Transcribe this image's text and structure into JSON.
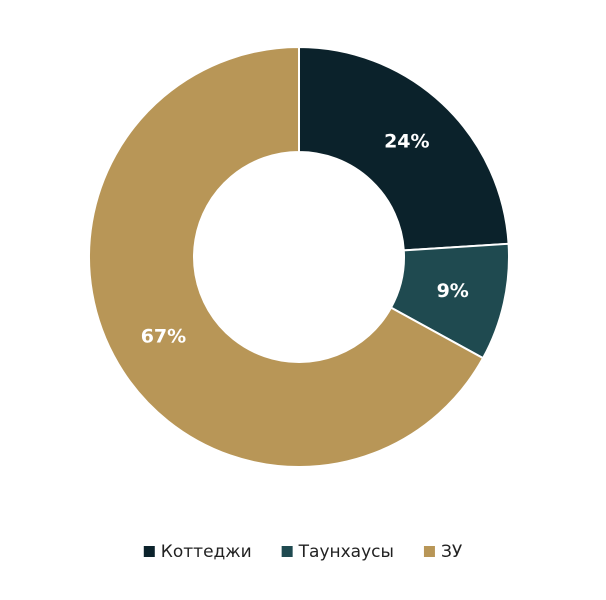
{
  "chart_data": {
    "type": "donut",
    "categories": [
      "Коттеджи",
      "Таунхаусы",
      "ЗУ"
    ],
    "values": [
      24,
      9,
      67
    ],
    "value_labels": [
      "24%",
      "9%",
      "67%"
    ],
    "colors": [
      "#0b222b",
      "#1f4a50",
      "#b89657"
    ],
    "legend": "bottom"
  }
}
